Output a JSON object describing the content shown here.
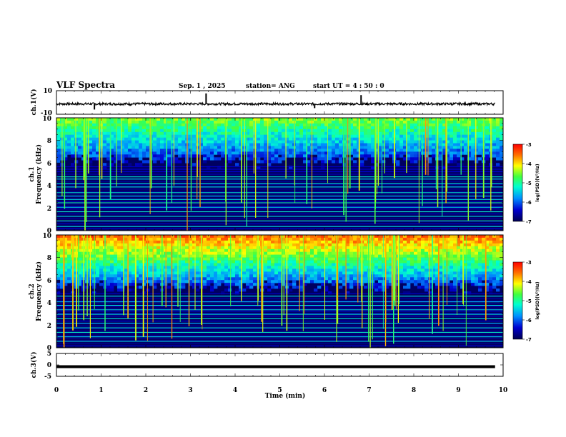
{
  "header": {
    "title": "VLF Spectra",
    "date": "Sep. 1 , 2025",
    "station": "station= ANG",
    "start": "start UT =  4 : 50 : 0"
  },
  "colors": {
    "spectrogram_low": "#000050",
    "spectrogram_high": "#ff0000",
    "waveform": "#000000"
  },
  "chart_data": [
    {
      "type": "line",
      "name": "ch.1 waveform",
      "ylabel": "ch.1(V)",
      "ylim": [
        -10,
        10
      ],
      "yticks": [
        "10",
        "-10"
      ],
      "x": [
        0,
        0.85,
        1.65,
        3.35,
        3.9,
        5.78,
        6.82,
        9.82
      ],
      "y": [
        0,
        -2.5,
        -1.2,
        3.2,
        -1.0,
        -2.0,
        2.6,
        0
      ]
    },
    {
      "type": "heatmap",
      "name": "ch.1 spectrogram",
      "ylabel": "Frequency (kHz)",
      "channel_label": "ch.1",
      "ylim": [
        0,
        10
      ],
      "yticks": [
        "0",
        "2",
        "4",
        "6",
        "8",
        "10"
      ],
      "background_top_khz": 6.2,
      "lines_khz": [
        0.4,
        0.9,
        1.3,
        1.7,
        2.1,
        2.5,
        2.8,
        3.1,
        3.4,
        3.9,
        4.2,
        4.6,
        4.8
      ],
      "colorbar": {
        "ticks": [
          "-3",
          "-4",
          "-5",
          "-6",
          "-7"
        ],
        "range": [
          -7,
          -3
        ],
        "label": "log(PSD)(V²/Hz)"
      }
    },
    {
      "type": "heatmap",
      "name": "ch.2 spectrogram",
      "ylabel": "Frequency (kHz)",
      "channel_label": "ch.2",
      "ylim": [
        0,
        10
      ],
      "yticks": [
        "0",
        "2",
        "4",
        "6",
        "8",
        "10"
      ],
      "background_top_khz": 5.3,
      "lines_khz": [
        0.6,
        1.0,
        1.4,
        1.8,
        2.2,
        2.6,
        3.0,
        3.4,
        3.8,
        4.1,
        4.6
      ],
      "colorbar": {
        "ticks": [
          "-3",
          "-4",
          "-5",
          "-6",
          "-7"
        ],
        "range": [
          -7,
          -3
        ],
        "label": "log(PSD)(V²/Hz)"
      }
    },
    {
      "type": "line",
      "name": "ch.3 waveform",
      "ylabel": "ch.3(V)",
      "ylim": [
        -5,
        5
      ],
      "yticks": [
        "5",
        "0",
        "-5"
      ],
      "x": [
        0,
        9.82
      ],
      "y": [
        -0.8,
        -0.8
      ]
    }
  ],
  "time_axis": {
    "label": "Time  (min)",
    "ticks": [
      "0",
      "1",
      "2",
      "3",
      "4",
      "5",
      "6",
      "7",
      "8",
      "9",
      "10"
    ],
    "xlim": [
      0,
      10
    ]
  }
}
